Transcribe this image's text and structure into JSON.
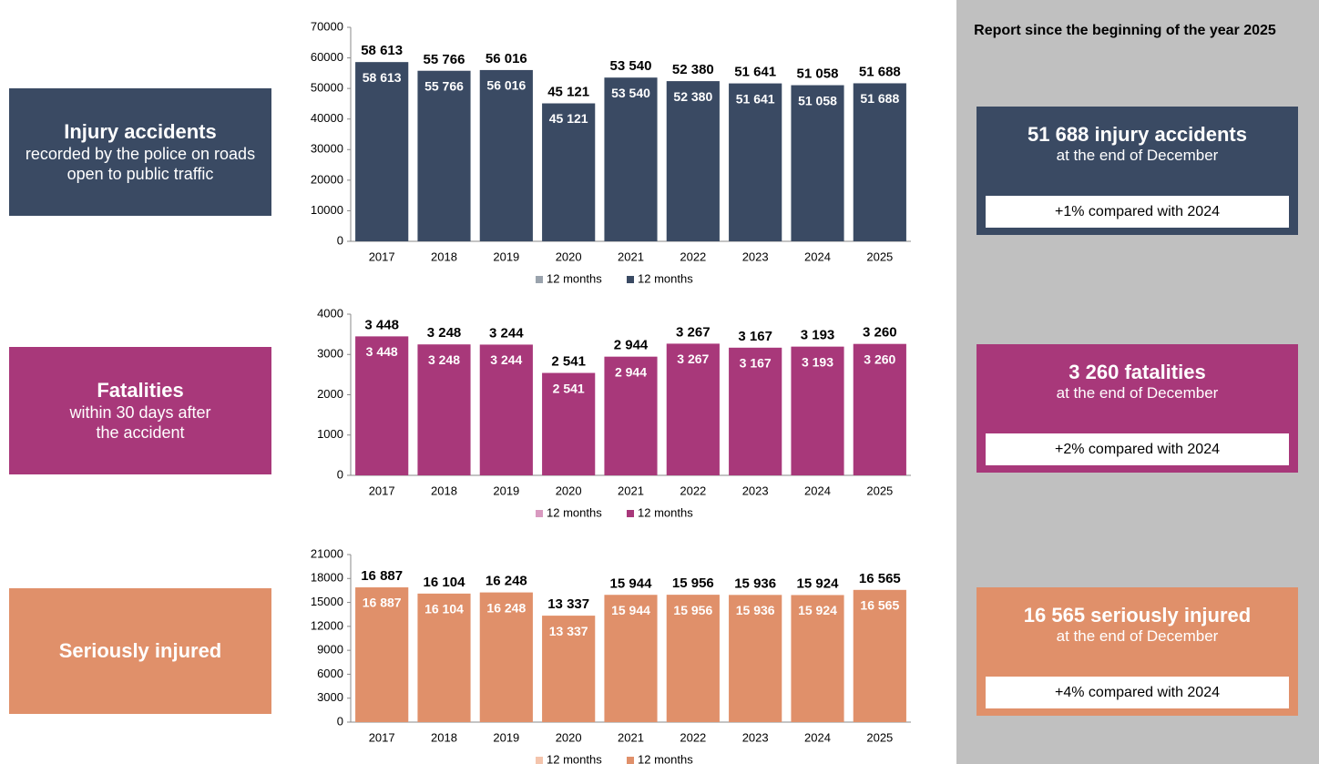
{
  "header": "Report since the beginning of the year 2025",
  "panels": [
    {
      "title": "Injury accidents",
      "subtitle": "recorded by the police on roads open to public traffic"
    },
    {
      "title": "Fatalities",
      "subtitle": "within 30 days after the accident"
    },
    {
      "title": "Seriously injured"
    }
  ],
  "summaries": [
    {
      "headline": "51 688 injury accidents",
      "subline": "at the end of December",
      "comparison": "+1% compared with 2024"
    },
    {
      "headline": "3 260 fatalities",
      "subline": "at the end of December",
      "comparison": "+2% compared with 2024"
    },
    {
      "headline": "16 565 seriously injured",
      "subline": "at the end of December",
      "comparison": "+4% compared with 2024"
    }
  ],
  "chart_data": [
    {
      "type": "bar",
      "categories": [
        "2017",
        "2018",
        "2019",
        "2020",
        "2021",
        "2022",
        "2023",
        "2024",
        "2025"
      ],
      "ylim": [
        0,
        70000
      ],
      "yticks": [
        0,
        10000,
        20000,
        30000,
        40000,
        50000,
        60000,
        70000
      ],
      "series": [
        {
          "name": "12 months",
          "color": "#9aa3ad",
          "values": [
            58613,
            55766,
            56016,
            45121,
            53540,
            52380,
            51641,
            51058,
            51688
          ],
          "value_labels": [
            "58 613",
            "55 766",
            "56 016",
            "45 121",
            "53 540",
            "52 380",
            "51 641",
            "51 058",
            "51 688"
          ]
        },
        {
          "name": "12 months",
          "color": "#3a4a63",
          "values": [
            58613,
            55766,
            56016,
            45121,
            53540,
            52380,
            51641,
            51058,
            51688
          ],
          "value_labels": [
            "58 613",
            "55 766",
            "56 016",
            "45 121",
            "53 540",
            "52 380",
            "51 641",
            "51 058",
            "51 688"
          ]
        }
      ]
    },
    {
      "type": "bar",
      "categories": [
        "2017",
        "2018",
        "2019",
        "2020",
        "2021",
        "2022",
        "2023",
        "2024",
        "2025"
      ],
      "ylim": [
        0,
        4000
      ],
      "yticks": [
        0,
        1000,
        2000,
        3000,
        4000
      ],
      "series": [
        {
          "name": "12 months",
          "color": "#d99ac0",
          "values": [
            3448,
            3248,
            3244,
            2541,
            2944,
            3267,
            3167,
            3193,
            3260
          ],
          "value_labels": [
            "3 448",
            "3 248",
            "3 244",
            "2 541",
            "2 944",
            "3 267",
            "3 167",
            "3 193",
            "3 260"
          ]
        },
        {
          "name": "12 months",
          "color": "#a8387a",
          "values": [
            3448,
            3248,
            3244,
            2541,
            2944,
            3267,
            3167,
            3193,
            3260
          ],
          "value_labels": [
            "3 448",
            "3 248",
            "3 244",
            "2 541",
            "2 944",
            "3 267",
            "3 167",
            "3 193",
            "3 260"
          ]
        }
      ]
    },
    {
      "type": "bar",
      "categories": [
        "2017",
        "2018",
        "2019",
        "2020",
        "2021",
        "2022",
        "2023",
        "2024",
        "2025"
      ],
      "ylim": [
        0,
        21000
      ],
      "yticks": [
        0,
        3000,
        6000,
        9000,
        12000,
        15000,
        18000,
        21000
      ],
      "series": [
        {
          "name": "12 months",
          "color": "#f4c4ac",
          "values": [
            16887,
            16104,
            16248,
            13337,
            15944,
            15956,
            15936,
            15924,
            16565
          ],
          "value_labels": [
            "16 887",
            "16 104",
            "16 248",
            "13 337",
            "15 944",
            "15 956",
            "15 936",
            "15 924",
            "16 565"
          ]
        },
        {
          "name": "12 months",
          "color": "#e0906a",
          "values": [
            16887,
            16104,
            16248,
            13337,
            15944,
            15956,
            15936,
            15924,
            16565
          ],
          "value_labels": [
            "16 887",
            "16 104",
            "16 248",
            "13 337",
            "15 944",
            "15 956",
            "15 936",
            "15 924",
            "16 565"
          ]
        }
      ]
    }
  ]
}
